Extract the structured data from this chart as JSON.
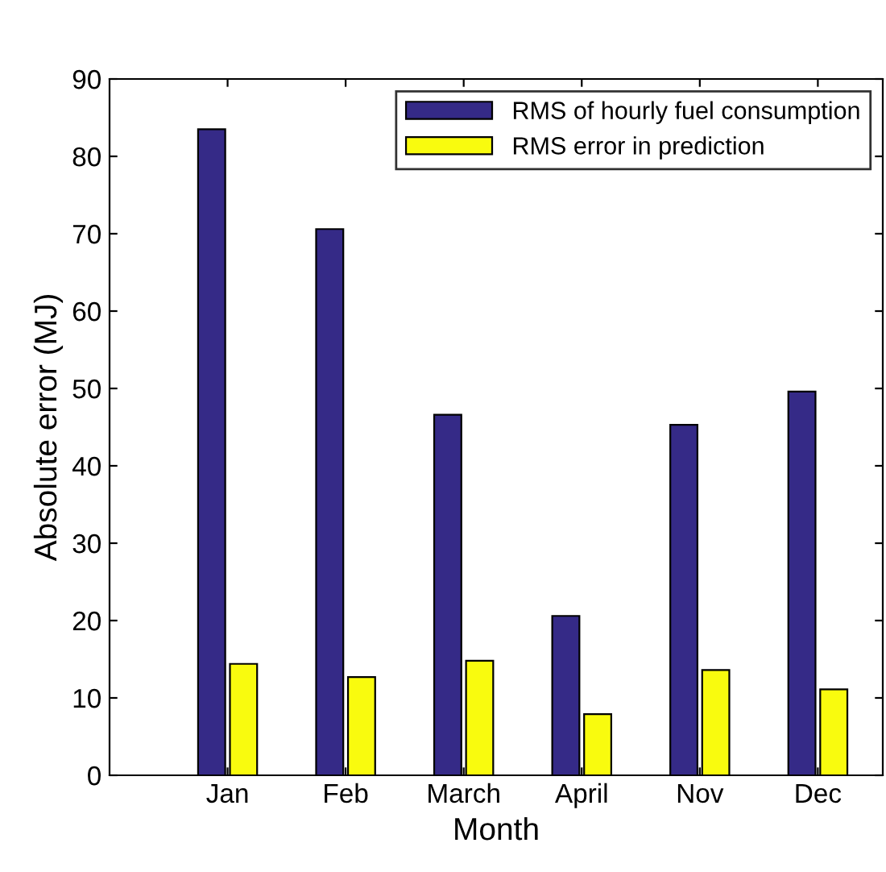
{
  "chart_data": {
    "type": "bar",
    "xlabel": "Month",
    "ylabel": "Absolute error (MJ)",
    "categories": [
      "Jan",
      "Feb",
      "March",
      "April",
      "Nov",
      "Dec"
    ],
    "series": [
      {
        "name": "RMS of hourly fuel consumption",
        "color": "#352a87",
        "values": [
          83.5,
          70.6,
          46.6,
          20.6,
          45.3,
          49.6
        ]
      },
      {
        "name": "RMS error in prediction",
        "color": "#f9fb0e",
        "values": [
          14.4,
          12.7,
          14.8,
          7.9,
          13.6,
          11.1
        ]
      }
    ],
    "ylim": [
      0,
      90
    ],
    "yticks": [
      0,
      10,
      20,
      30,
      40,
      50,
      60,
      70,
      80,
      90
    ],
    "grid": false,
    "legend": "top right"
  }
}
